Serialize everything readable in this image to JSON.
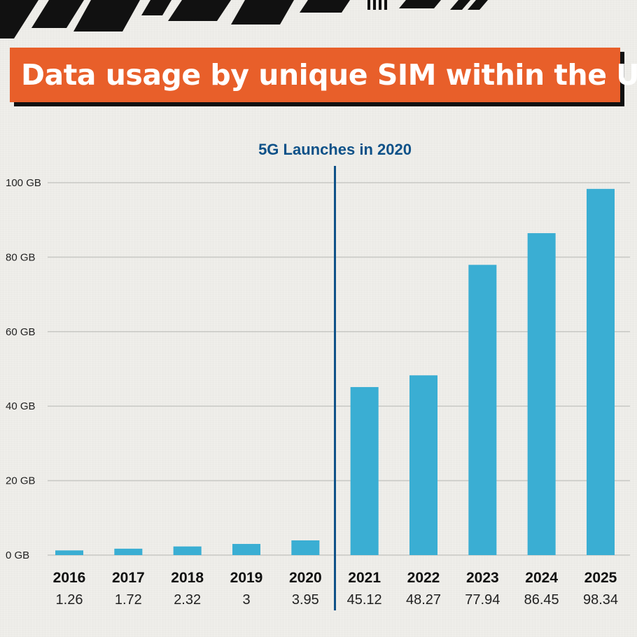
{
  "title": "Data usage by unique SIM within the UK",
  "colors": {
    "bar": "#3aaed3",
    "title_bg": "#e85f2a",
    "annotation": "#0e5188",
    "grid": "#c8c8c4"
  },
  "chart_data": {
    "type": "bar",
    "title": "Data usage by unique SIM within the UK",
    "categories": [
      "2016",
      "2017",
      "2018",
      "2019",
      "2020",
      "2021",
      "2022",
      "2023",
      "2024",
      "2025"
    ],
    "values": [
      1.26,
      1.72,
      2.32,
      3,
      3.95,
      45.12,
      48.27,
      77.94,
      86.45,
      98.34
    ],
    "value_labels": [
      "1.26",
      "1.72",
      "2.32",
      "3",
      "3.95",
      "45.12",
      "48.27",
      "77.94",
      "86.45",
      "98.34"
    ],
    "ylim": [
      0,
      100
    ],
    "y_ticks": [
      0,
      20,
      40,
      60,
      80,
      100
    ],
    "y_tick_labels": [
      "0 GB",
      "20 GB",
      "40 GB",
      "60 GB",
      "80 GB",
      "100 GB"
    ],
    "grid": true,
    "annotation": {
      "text": "5G Launches in 2020",
      "between": [
        "2020",
        "2021"
      ]
    },
    "xlabel": "",
    "ylabel": ""
  }
}
